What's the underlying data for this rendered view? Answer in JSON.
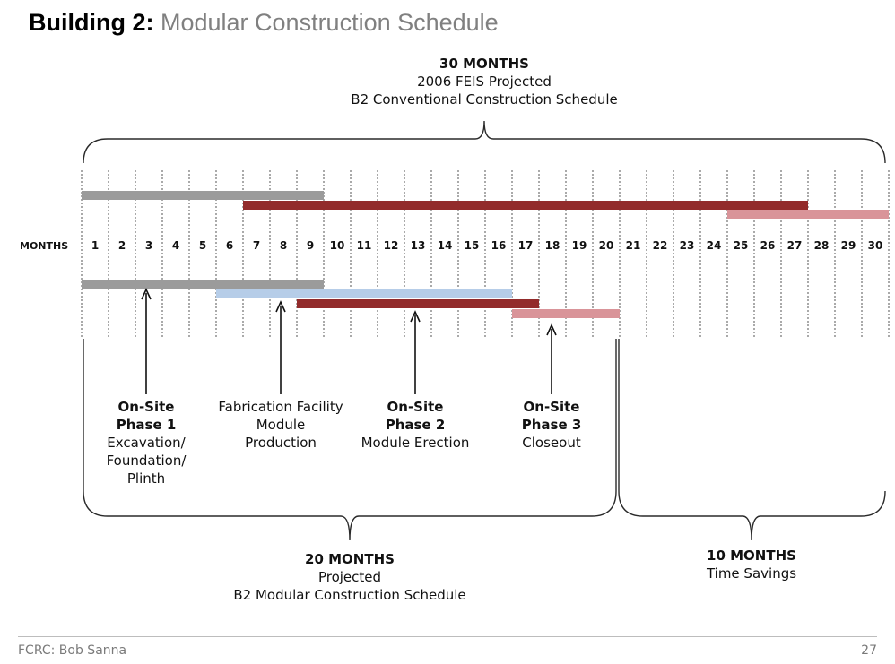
{
  "title": {
    "bold": "Building 2:",
    "rest": " Modular Construction Schedule"
  },
  "top_bracket": {
    "line1": "30 MONTHS",
    "line2": "2006 FEIS Projected",
    "line3": "B2 Conventional Construction Schedule"
  },
  "axis": {
    "label": "MONTHS",
    "months": [
      "1",
      "2",
      "3",
      "4",
      "5",
      "6",
      "7",
      "8",
      "9",
      "10",
      "11",
      "12",
      "13",
      "14",
      "15",
      "16",
      "17",
      "18",
      "19",
      "20",
      "21",
      "22",
      "23",
      "24",
      "25",
      "26",
      "27",
      "28",
      "29",
      "30"
    ]
  },
  "colors": {
    "gray": "#9b9b9b",
    "dark_red": "#922b2b",
    "pink": "#d99499",
    "light_blue": "#b6cde8"
  },
  "chart_data": {
    "type": "gantt",
    "unit": "months",
    "conventional": [
      {
        "start": 1,
        "end": 9,
        "color": "gray"
      },
      {
        "start": 7,
        "end": 27,
        "color": "dark_red"
      },
      {
        "start": 25,
        "end": 30,
        "color": "pink"
      }
    ],
    "modular": [
      {
        "start": 1,
        "end": 9,
        "color": "gray"
      },
      {
        "start": 6,
        "end": 16,
        "color": "light_blue"
      },
      {
        "start": 9,
        "end": 17,
        "color": "dark_red"
      },
      {
        "start": 17,
        "end": 20,
        "color": "pink"
      }
    ]
  },
  "phases": [
    {
      "lines": [
        {
          "text": "On-Site",
          "bold": true
        },
        {
          "text": "Phase 1",
          "bold": true
        },
        {
          "text": "Excavation/",
          "bold": false
        },
        {
          "text": "Foundation/",
          "bold": false
        },
        {
          "text": "Plinth",
          "bold": false
        }
      ]
    },
    {
      "lines": [
        {
          "text": "Fabrication Facility",
          "bold": false
        },
        {
          "text": "Module",
          "bold": false
        },
        {
          "text": "Production",
          "bold": false
        }
      ]
    },
    {
      "lines": [
        {
          "text": "On-Site",
          "bold": true
        },
        {
          "text": "Phase 2",
          "bold": true
        },
        {
          "text": "Module Erection",
          "bold": false
        }
      ]
    },
    {
      "lines": [
        {
          "text": "On-Site",
          "bold": true
        },
        {
          "text": "Phase 3",
          "bold": true
        },
        {
          "text": "Closeout",
          "bold": false
        }
      ]
    }
  ],
  "bottom_left": {
    "line1": "20 MONTHS",
    "line2": "Projected",
    "line3": "B2 Modular Construction Schedule"
  },
  "bottom_right": {
    "line1": "10 MONTHS",
    "line2": "Time Savings"
  },
  "footer": {
    "left": "FCRC: Bob Sanna",
    "right": "27"
  }
}
